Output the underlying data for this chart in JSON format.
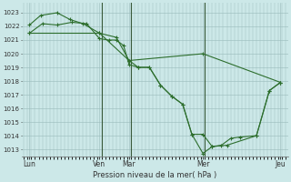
{
  "background_color": "#cce8e8",
  "grid_color": "#99bbbb",
  "line_color": "#2d6e2d",
  "marker_color": "#2d6e2d",
  "xlabel_text": "Pression niveau de la mer( hPa )",
  "ylim": [
    1012.5,
    1023.7
  ],
  "yticks": [
    1013,
    1014,
    1015,
    1016,
    1017,
    1018,
    1019,
    1020,
    1021,
    1022,
    1023
  ],
  "xlim": [
    -0.05,
    7.15
  ],
  "xtick_positions": [
    0.15,
    2.05,
    2.85,
    4.85,
    6.95
  ],
  "xtick_labels": [
    "Lun",
    "Ven",
    "Mar",
    "Mer",
    "Jeu"
  ],
  "vlines_x": [
    2.1,
    2.9,
    4.9
  ],
  "lines": [
    {
      "x": [
        0.15,
        2.05,
        2.85,
        4.85,
        6.95
      ],
      "y": [
        1021.5,
        1021.5,
        1019.5,
        1020.0,
        1017.9
      ]
    },
    {
      "x": [
        0.15,
        0.5,
        0.9,
        1.3,
        1.7,
        2.05,
        2.3,
        2.5,
        2.7,
        2.85,
        3.1,
        3.4,
        3.7,
        4.0,
        4.3,
        4.55,
        4.85,
        5.1,
        5.35,
        5.6,
        5.85,
        6.3,
        6.65,
        6.95
      ],
      "y": [
        1021.5,
        1022.2,
        1022.1,
        1022.3,
        1022.2,
        1021.1,
        1021.0,
        1021.0,
        1020.6,
        1019.2,
        1019.0,
        1019.0,
        1017.7,
        1016.9,
        1016.3,
        1014.1,
        1014.1,
        1013.2,
        1013.3,
        1013.8,
        1013.9,
        1014.0,
        1017.3,
        1017.9
      ]
    },
    {
      "x": [
        0.15,
        0.45,
        0.9,
        1.25,
        1.6,
        2.05,
        2.5,
        2.85,
        3.1,
        3.4,
        3.7,
        4.0,
        4.3,
        4.55,
        4.85,
        5.1,
        5.5,
        6.3,
        6.65,
        6.95
      ],
      "y": [
        1022.1,
        1022.8,
        1023.0,
        1022.5,
        1022.2,
        1021.5,
        1021.2,
        1019.5,
        1019.0,
        1019.0,
        1017.7,
        1016.9,
        1016.3,
        1014.1,
        1012.7,
        1013.2,
        1013.3,
        1014.0,
        1017.3,
        1017.9
      ]
    }
  ],
  "figsize": [
    3.2,
    2.0
  ],
  "dpi": 100
}
